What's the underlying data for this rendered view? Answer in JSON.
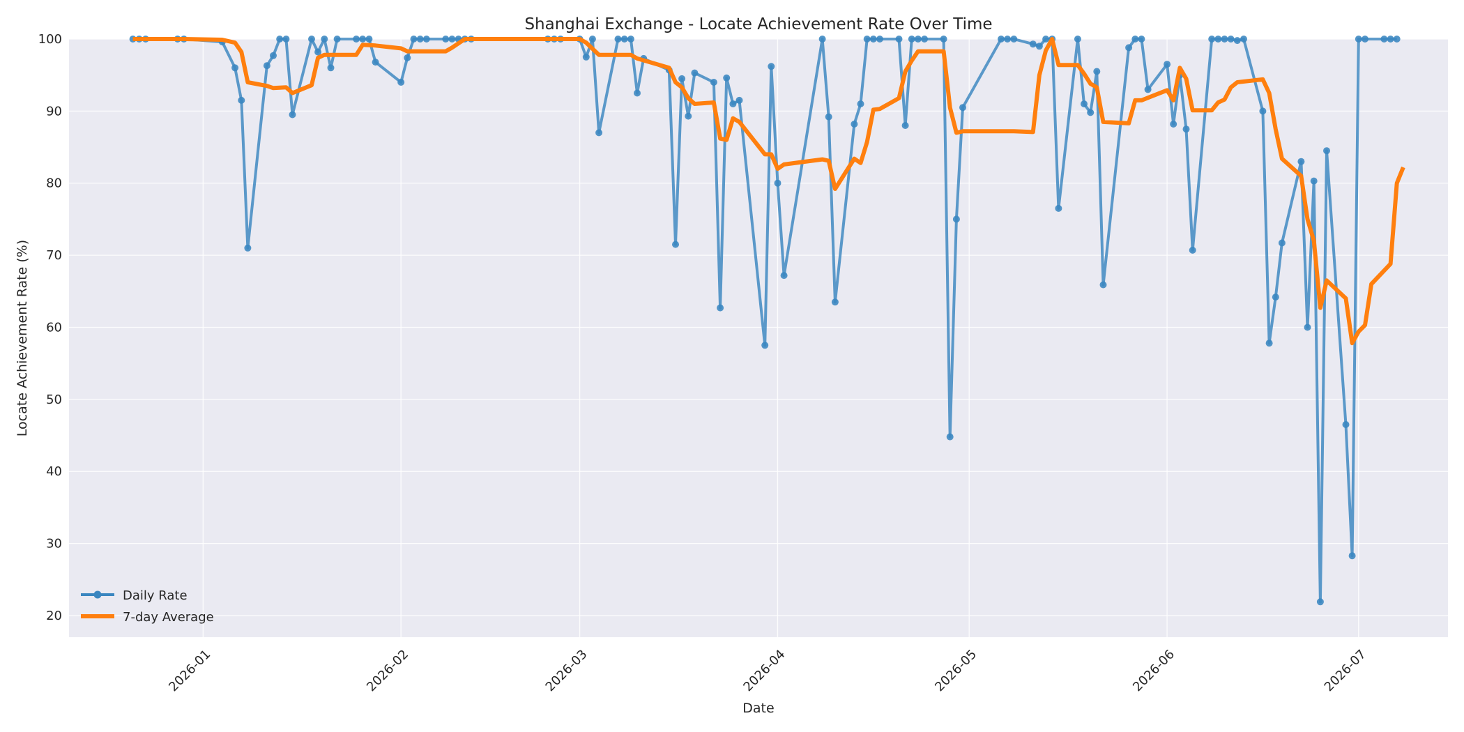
{
  "chart_data": {
    "type": "line",
    "title": "Shanghai Exchange - Locate Achievement Rate Over Time",
    "xlabel": "Date",
    "ylabel": "Locate Achievement Rate (%)",
    "ylim": [
      17,
      100
    ],
    "yticks": [
      20,
      30,
      40,
      50,
      60,
      70,
      80,
      90,
      100
    ],
    "xlim": [
      "2025-12-11",
      "2026-07-15"
    ],
    "xticks": [
      "2026-01",
      "2026-02",
      "2026-03",
      "2026-04",
      "2026-05",
      "2026-06",
      "2026-07"
    ],
    "grid": true,
    "legend_position": "lower-left",
    "colors": {
      "daily": "#3a86c0",
      "avg": "#ff7f0e",
      "background": "#eaeaf2"
    },
    "series": [
      {
        "name": "Daily Rate",
        "style": "line-with-markers",
        "points": [
          [
            "2025-12-21",
            100
          ],
          [
            "2025-12-22",
            100
          ],
          [
            "2025-12-23",
            100
          ],
          [
            "2025-12-28",
            100
          ],
          [
            "2025-12-29",
            100
          ],
          [
            "2026-01-04",
            99.6
          ],
          [
            "2026-01-06",
            96
          ],
          [
            "2026-01-07",
            91.5
          ],
          [
            "2026-01-08",
            71
          ],
          [
            "2026-01-11",
            96.3
          ],
          [
            "2026-01-12",
            97.7
          ],
          [
            "2026-01-13",
            100
          ],
          [
            "2026-01-14",
            100
          ],
          [
            "2026-01-15",
            89.5
          ],
          [
            "2026-01-18",
            100
          ],
          [
            "2026-01-19",
            98.2
          ],
          [
            "2026-01-20",
            100
          ],
          [
            "2026-01-21",
            96
          ],
          [
            "2026-01-22",
            100
          ],
          [
            "2026-01-25",
            100
          ],
          [
            "2026-01-26",
            100
          ],
          [
            "2026-01-27",
            100
          ],
          [
            "2026-01-28",
            96.8
          ],
          [
            "2026-02-01",
            94
          ],
          [
            "2026-02-02",
            97.4
          ],
          [
            "2026-02-03",
            100
          ],
          [
            "2026-02-04",
            100
          ],
          [
            "2026-02-05",
            100
          ],
          [
            "2026-02-08",
            100
          ],
          [
            "2026-02-09",
            100
          ],
          [
            "2026-02-10",
            100
          ],
          [
            "2026-02-11",
            100
          ],
          [
            "2026-02-12",
            100
          ],
          [
            "2026-02-24",
            100
          ],
          [
            "2026-02-25",
            100
          ],
          [
            "2026-02-26",
            100
          ],
          [
            "2026-03-01",
            100
          ],
          [
            "2026-03-02",
            97.5
          ],
          [
            "2026-03-03",
            100
          ],
          [
            "2026-03-04",
            87
          ],
          [
            "2026-03-07",
            100
          ],
          [
            "2026-03-08",
            100
          ],
          [
            "2026-03-09",
            100
          ],
          [
            "2026-03-10",
            92.5
          ],
          [
            "2026-03-11",
            97.3
          ],
          [
            "2026-03-15",
            95.7
          ],
          [
            "2026-03-16",
            71.5
          ],
          [
            "2026-03-17",
            94.5
          ],
          [
            "2026-03-18",
            89.3
          ],
          [
            "2026-03-19",
            95.3
          ],
          [
            "2026-03-22",
            94
          ],
          [
            "2026-03-23",
            62.7
          ],
          [
            "2026-03-24",
            94.6
          ],
          [
            "2026-03-25",
            91
          ],
          [
            "2026-03-26",
            91.5
          ],
          [
            "2026-03-30",
            57.5
          ],
          [
            "2026-03-31",
            96.2
          ],
          [
            "2026-04-01",
            80
          ],
          [
            "2026-04-02",
            67.2
          ],
          [
            "2026-04-08",
            100
          ],
          [
            "2026-04-09",
            89.2
          ],
          [
            "2026-04-10",
            63.5
          ],
          [
            "2026-04-13",
            88.2
          ],
          [
            "2026-04-14",
            91
          ],
          [
            "2026-04-15",
            100
          ],
          [
            "2026-04-16",
            100
          ],
          [
            "2026-04-17",
            100
          ],
          [
            "2026-04-20",
            100
          ],
          [
            "2026-04-21",
            88
          ],
          [
            "2026-04-22",
            100
          ],
          [
            "2026-04-23",
            100
          ],
          [
            "2026-04-24",
            100
          ],
          [
            "2026-04-27",
            100
          ],
          [
            "2026-04-28",
            44.8
          ],
          [
            "2026-04-29",
            75
          ],
          [
            "2026-04-30",
            90.5
          ],
          [
            "2026-05-06",
            100
          ],
          [
            "2026-05-07",
            100
          ],
          [
            "2026-05-08",
            100
          ],
          [
            "2026-05-11",
            99.3
          ],
          [
            "2026-05-12",
            99
          ],
          [
            "2026-05-13",
            100
          ],
          [
            "2026-05-14",
            100
          ],
          [
            "2026-05-15",
            76.5
          ],
          [
            "2026-05-18",
            100
          ],
          [
            "2026-05-19",
            91
          ],
          [
            "2026-05-20",
            89.8
          ],
          [
            "2026-05-21",
            95.5
          ],
          [
            "2026-05-22",
            65.9
          ],
          [
            "2026-05-26",
            98.8
          ],
          [
            "2026-05-27",
            100
          ],
          [
            "2026-05-28",
            100
          ],
          [
            "2026-05-29",
            93
          ],
          [
            "2026-06-01",
            96.5
          ],
          [
            "2026-06-02",
            88.2
          ],
          [
            "2026-06-03",
            95
          ],
          [
            "2026-06-04",
            87.5
          ],
          [
            "2026-06-05",
            70.7
          ],
          [
            "2026-06-08",
            100
          ],
          [
            "2026-06-09",
            100
          ],
          [
            "2026-06-10",
            100
          ],
          [
            "2026-06-11",
            100
          ],
          [
            "2026-06-12",
            99.8
          ],
          [
            "2026-06-13",
            100
          ],
          [
            "2026-06-16",
            90
          ],
          [
            "2026-06-17",
            57.8
          ],
          [
            "2026-06-18",
            64.2
          ],
          [
            "2026-06-19",
            71.7
          ],
          [
            "2026-06-22",
            83
          ],
          [
            "2026-06-23",
            60
          ],
          [
            "2026-06-24",
            80.3
          ],
          [
            "2026-06-25",
            21.9
          ],
          [
            "2026-06-26",
            84.5
          ],
          [
            "2026-06-29",
            46.5
          ],
          [
            "2026-06-30",
            28.3
          ],
          [
            "2026-07-01",
            100
          ],
          [
            "2026-07-02",
            100
          ],
          [
            "2026-07-05",
            100
          ],
          [
            "2026-07-06",
            100
          ],
          [
            "2026-07-07",
            100
          ]
        ]
      },
      {
        "name": "7-day Average",
        "style": "thick-line",
        "points": [
          [
            "2025-12-21",
            100
          ],
          [
            "2025-12-29",
            100
          ],
          [
            "2026-01-04",
            99.9
          ],
          [
            "2026-01-06",
            99.5
          ],
          [
            "2026-01-07",
            98.2
          ],
          [
            "2026-01-08",
            94
          ],
          [
            "2026-01-11",
            93.5
          ],
          [
            "2026-01-12",
            93.2
          ],
          [
            "2026-01-14",
            93.3
          ],
          [
            "2026-01-15",
            92.5
          ],
          [
            "2026-01-18",
            93.6
          ],
          [
            "2026-01-19",
            97.4
          ],
          [
            "2026-01-20",
            97.8
          ],
          [
            "2026-01-25",
            97.8
          ],
          [
            "2026-01-26",
            99.2
          ],
          [
            "2026-01-28",
            99.1
          ],
          [
            "2026-02-01",
            98.7
          ],
          [
            "2026-02-02",
            98.3
          ],
          [
            "2026-02-08",
            98.3
          ],
          [
            "2026-02-09",
            98.8
          ],
          [
            "2026-02-11",
            100
          ],
          [
            "2026-03-01",
            100
          ],
          [
            "2026-03-02",
            99.5
          ],
          [
            "2026-03-04",
            97.8
          ],
          [
            "2026-03-09",
            97.8
          ],
          [
            "2026-03-10",
            97.3
          ],
          [
            "2026-03-15",
            96
          ],
          [
            "2026-03-16",
            94
          ],
          [
            "2026-03-17",
            93.3
          ],
          [
            "2026-03-18",
            91.8
          ],
          [
            "2026-03-19",
            91
          ],
          [
            "2026-03-22",
            91.2
          ],
          [
            "2026-03-23",
            86.2
          ],
          [
            "2026-03-24",
            86
          ],
          [
            "2026-03-25",
            89
          ],
          [
            "2026-03-26",
            88.5
          ],
          [
            "2026-03-30",
            84
          ],
          [
            "2026-03-31",
            84
          ],
          [
            "2026-04-01",
            82
          ],
          [
            "2026-04-02",
            82.6
          ],
          [
            "2026-04-08",
            83.3
          ],
          [
            "2026-04-09",
            83.1
          ],
          [
            "2026-04-10",
            79.2
          ],
          [
            "2026-04-13",
            83.4
          ],
          [
            "2026-04-14",
            82.8
          ],
          [
            "2026-04-15",
            85.7
          ],
          [
            "2026-04-16",
            90.2
          ],
          [
            "2026-04-17",
            90.3
          ],
          [
            "2026-04-20",
            91.8
          ],
          [
            "2026-04-21",
            95.5
          ],
          [
            "2026-04-22",
            97
          ],
          [
            "2026-04-23",
            98.3
          ],
          [
            "2026-04-27",
            98.3
          ],
          [
            "2026-04-28",
            90.5
          ],
          [
            "2026-04-29",
            87
          ],
          [
            "2026-04-30",
            87.2
          ],
          [
            "2026-05-08",
            87.2
          ],
          [
            "2026-05-11",
            87.1
          ],
          [
            "2026-05-12",
            95
          ],
          [
            "2026-05-13",
            98.4
          ],
          [
            "2026-05-14",
            100
          ],
          [
            "2026-05-15",
            96.4
          ],
          [
            "2026-05-18",
            96.4
          ],
          [
            "2026-05-19",
            95.2
          ],
          [
            "2026-05-20",
            93.8
          ],
          [
            "2026-05-21",
            93.3
          ],
          [
            "2026-05-22",
            88.5
          ],
          [
            "2026-05-26",
            88.3
          ],
          [
            "2026-05-27",
            91.5
          ],
          [
            "2026-05-28",
            91.5
          ],
          [
            "2026-06-01",
            92.9
          ],
          [
            "2026-06-02",
            91.5
          ],
          [
            "2026-06-03",
            96
          ],
          [
            "2026-06-04",
            94.5
          ],
          [
            "2026-06-05",
            90.1
          ],
          [
            "2026-06-08",
            90.1
          ],
          [
            "2026-06-09",
            91.2
          ],
          [
            "2026-06-10",
            91.6
          ],
          [
            "2026-06-11",
            93.3
          ],
          [
            "2026-06-12",
            94
          ],
          [
            "2026-06-16",
            94.4
          ],
          [
            "2026-06-17",
            92.5
          ],
          [
            "2026-06-18",
            87.5
          ],
          [
            "2026-06-19",
            83.4
          ],
          [
            "2026-06-22",
            81
          ],
          [
            "2026-06-23",
            75
          ],
          [
            "2026-06-24",
            72
          ],
          [
            "2026-06-25",
            62.7
          ],
          [
            "2026-06-26",
            66.5
          ],
          [
            "2026-06-29",
            64
          ],
          [
            "2026-06-30",
            57.8
          ],
          [
            "2026-07-01",
            59.4
          ],
          [
            "2026-07-02",
            60.3
          ],
          [
            "2026-07-03",
            66
          ],
          [
            "2026-07-06",
            68.8
          ],
          [
            "2026-07-07",
            80
          ],
          [
            "2026-07-08",
            82.2
          ]
        ]
      }
    ]
  }
}
